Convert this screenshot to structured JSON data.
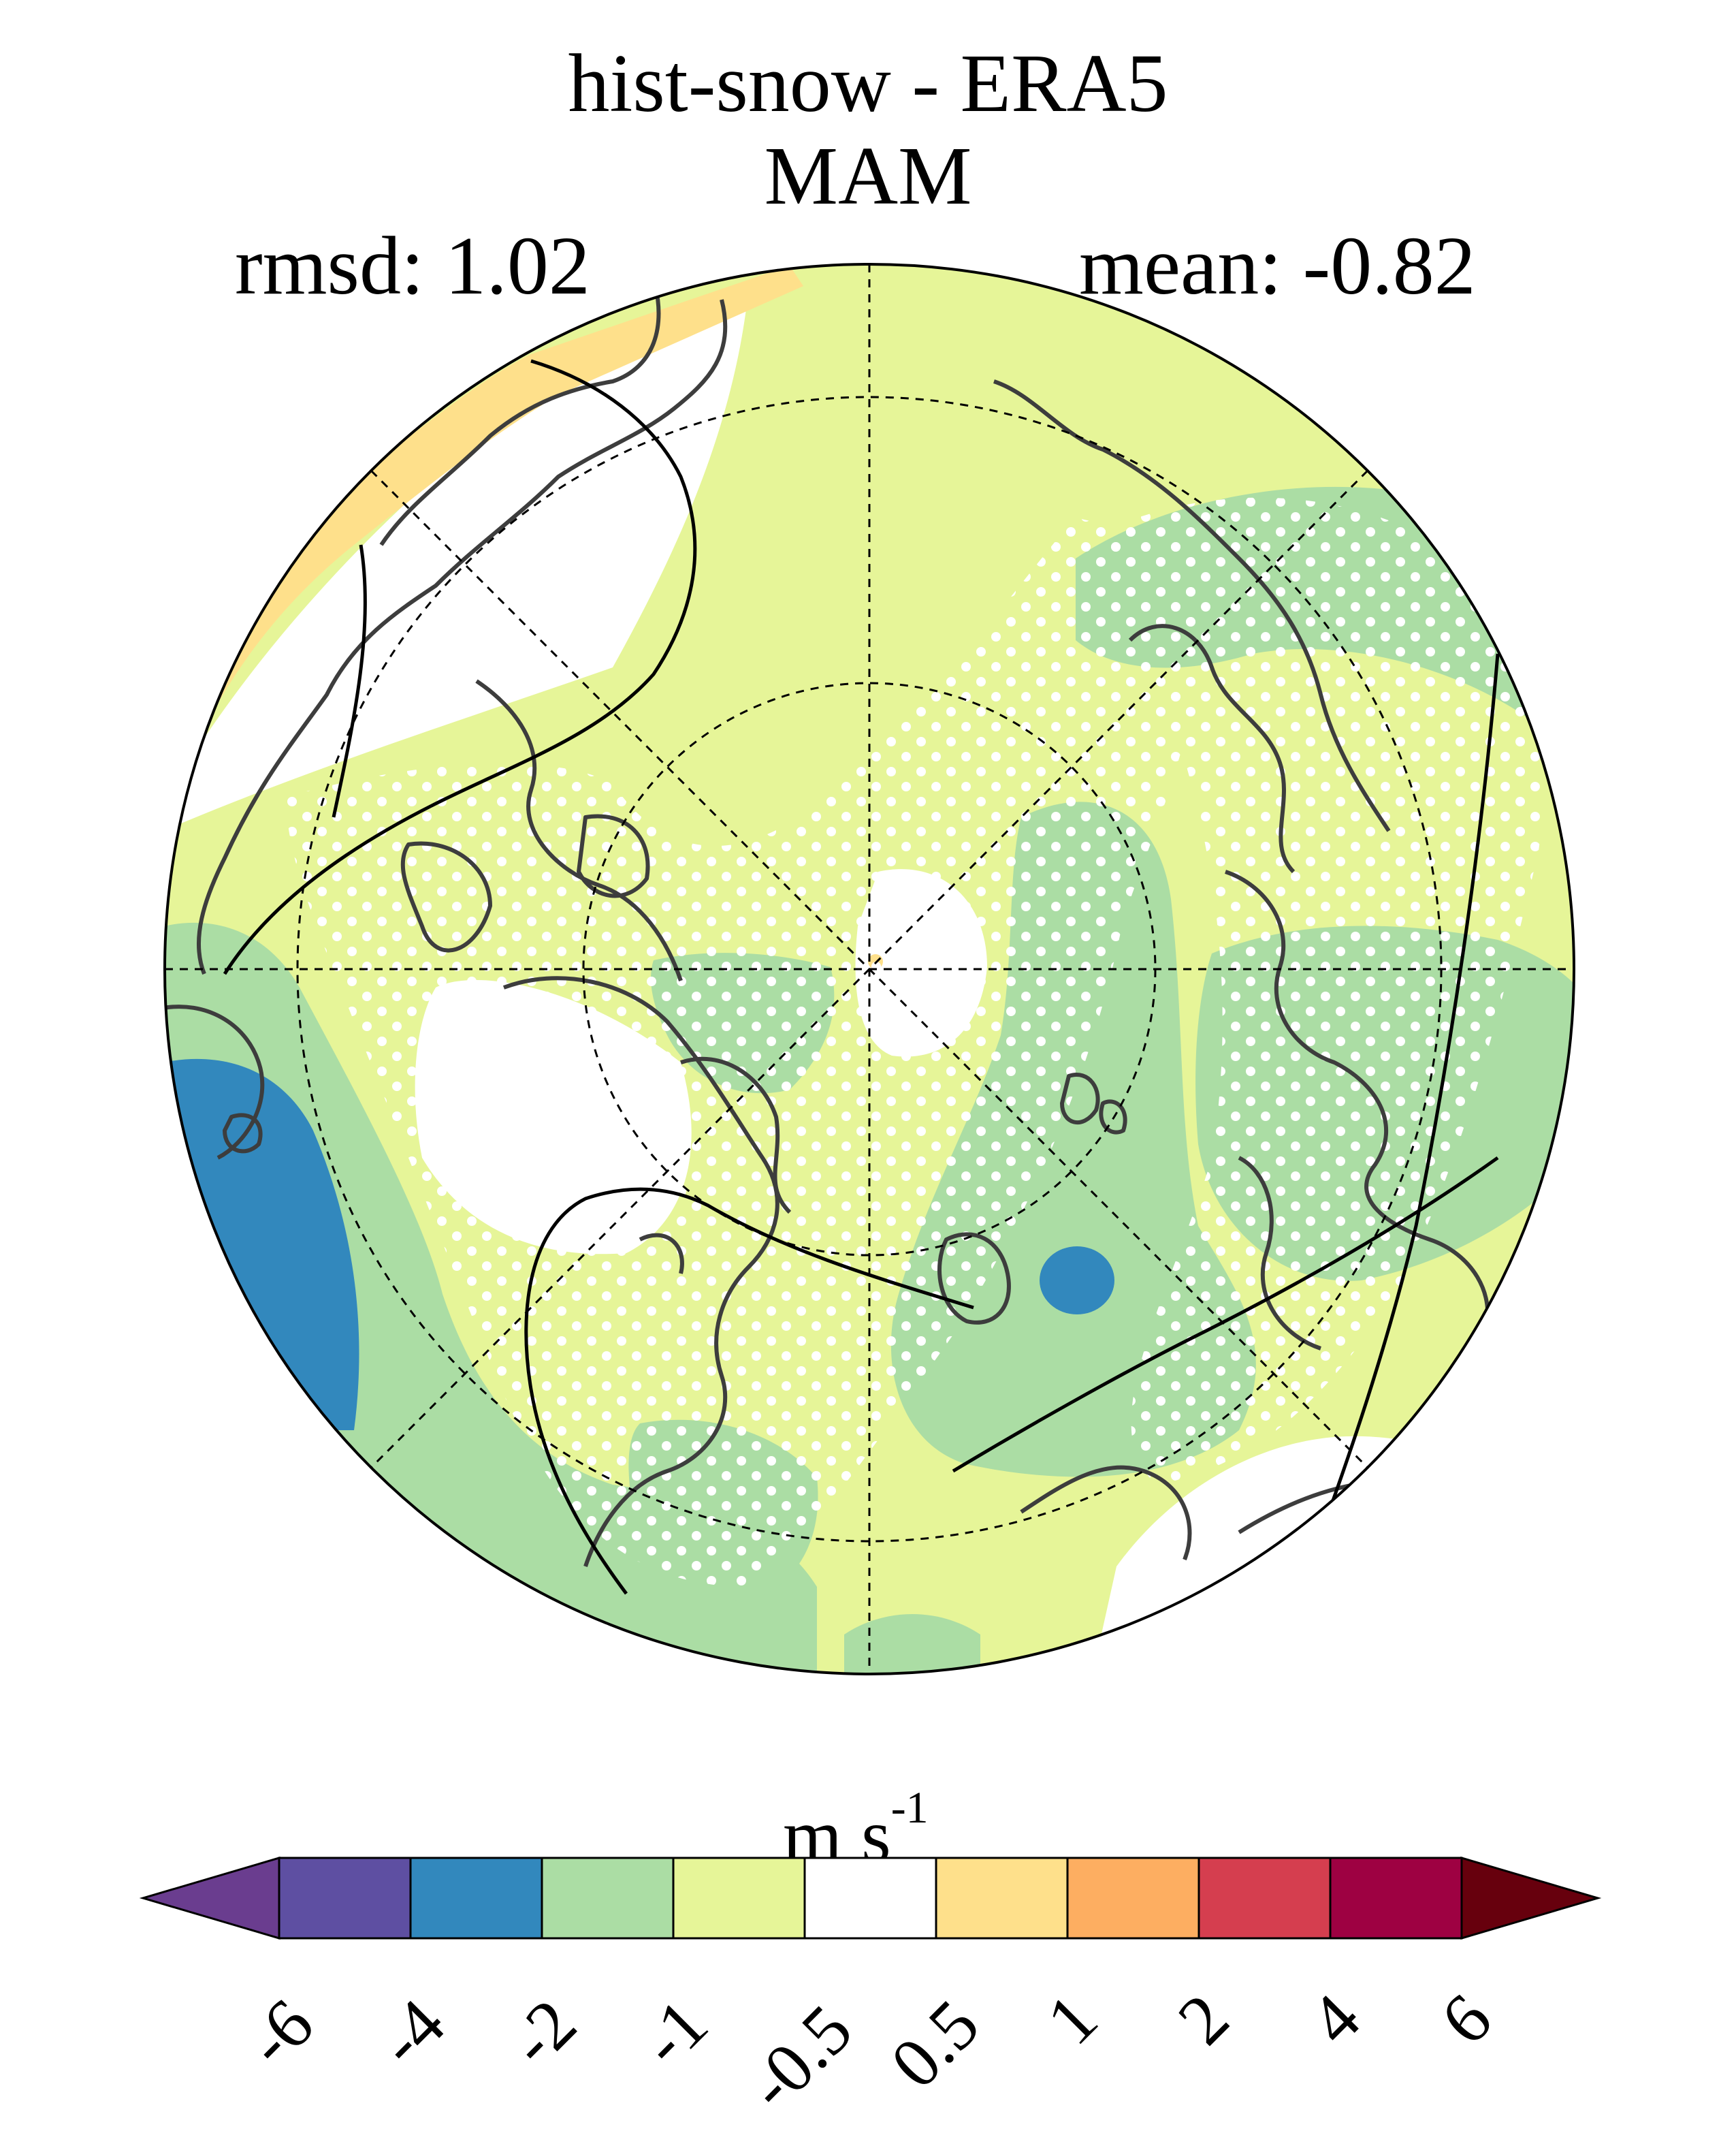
{
  "title": "hist-snow - ERA5",
  "season": "MAM",
  "stats": {
    "rmsd": "rmsd: 1.02",
    "mean": "mean: -0.82"
  },
  "colorbar": {
    "unit_base": "m s",
    "unit_exponent": "-1",
    "tick_labels": [
      "-6",
      "-4",
      "-2",
      "-1",
      "-0.5",
      "0.5",
      "1",
      "2",
      "4",
      "6"
    ],
    "bounds": [
      -6,
      -4,
      -2,
      -1,
      -0.5,
      0.5,
      1,
      2,
      4,
      6
    ],
    "colors": [
      "#5e4fa2",
      "#3288bd",
      "#abdda4",
      "#e6f598",
      "#ffffff",
      "#fee08b",
      "#fdae61",
      "#d53e4f",
      "#9e0142"
    ],
    "under_color": "#6a3d8f",
    "over_color": "#67000d"
  },
  "map": {
    "projection": "north-polar-stereographic",
    "graticule": "dashed",
    "stippling": "white dots",
    "field_colors": {
      "lt_-2_to_-4": "#3288bd",
      "-2_to_-1": "#abdda4",
      "-1_to_-0.5": "#e6f598",
      "neutral": "#ffffff",
      "0.5_to_1": "#fee08b"
    }
  }
}
